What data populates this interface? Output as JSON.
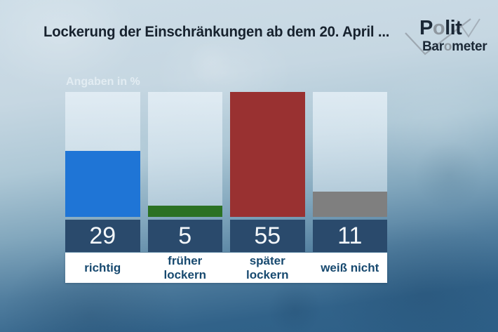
{
  "header": {
    "title": "Lockerung der Einschränkungen ab dem 20. April ...",
    "logo": {
      "top": {
        "pre": "P",
        "o": "o",
        "post": "lit"
      },
      "bottom": {
        "pre": "Bar",
        "o": "o",
        "post": "meter"
      }
    }
  },
  "chart_data": {
    "type": "bar",
    "title": "Lockerung der Einschränkungen ab dem 20. April ...",
    "unit_label": "Angaben in %",
    "categories": [
      "richtig",
      "früher lockern",
      "später lockern",
      "weiß nicht"
    ],
    "categories_display": [
      "richtig",
      "früher\nlockern",
      "später\nlockern",
      "weiß nicht"
    ],
    "values": [
      29,
      5,
      55,
      11
    ],
    "ylim": [
      0,
      55
    ],
    "grid": false,
    "legend": "none",
    "colors": {
      "bars": [
        "#1f75d6",
        "#2b7123",
        "#993131",
        "#7f7f7f"
      ],
      "value_box": "#2a4a6c",
      "value_text": "#f3f7fa",
      "label_text": "#17496f",
      "track": "rgba(220,233,241,0.7)"
    }
  }
}
